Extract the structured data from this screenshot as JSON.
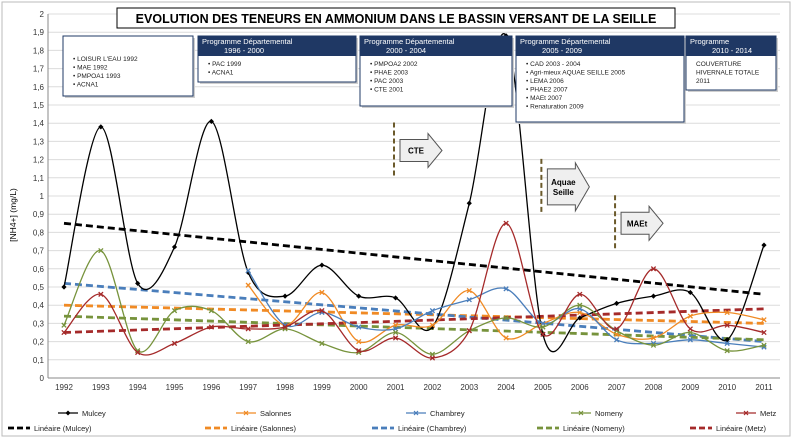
{
  "chart_data": {
    "type": "line",
    "title": "EVOLUTION DES TENEURS EN AMMONIUM DANS LE BASSIN VERSANT DE LA SEILLE",
    "ylabel": "[NH4+] (mg/L)",
    "xlabel": "",
    "ylim": [
      0,
      2
    ],
    "yticks": [
      "0",
      "0,1",
      "0,2",
      "0,3",
      "0,4",
      "0,5",
      "0,6",
      "0,7",
      "0,8",
      "0,9",
      "1",
      "1,1",
      "1,2",
      "1,3",
      "1,4",
      "1,5",
      "1,6",
      "1,7",
      "1,8",
      "1,9",
      "2"
    ],
    "categories": [
      "1992",
      "1993",
      "1994",
      "1995",
      "1996",
      "1997",
      "1998",
      "1999",
      "2000",
      "2001",
      "2002",
      "2003",
      "2004",
      "2005",
      "2006",
      "2007",
      "2008",
      "2009",
      "2010",
      "2011"
    ],
    "grid": true,
    "legend": "bottom",
    "series": [
      {
        "name": "Mulcey",
        "color": "#000000",
        "marker": "diamond",
        "values": [
          0.5,
          1.38,
          0.52,
          0.72,
          1.41,
          0.58,
          0.45,
          0.62,
          0.45,
          0.44,
          0.28,
          0.96,
          1.88,
          0.24,
          0.33,
          0.41,
          0.45,
          0.47,
          0.21,
          0.73
        ]
      },
      {
        "name": "Salonnes",
        "color": "#f08a24",
        "marker": "x",
        "values": [
          null,
          null,
          null,
          null,
          null,
          0.51,
          0.29,
          0.47,
          0.2,
          0.29,
          0.29,
          0.48,
          0.22,
          0.3,
          0.36,
          0.24,
          0.22,
          0.34,
          0.36,
          0.32
        ]
      },
      {
        "name": "Chambrey",
        "color": "#4a7ebb",
        "marker": "x",
        "values": [
          null,
          null,
          null,
          null,
          null,
          0.59,
          0.29,
          0.36,
          0.28,
          0.27,
          0.37,
          0.43,
          0.49,
          0.3,
          0.38,
          0.21,
          0.19,
          0.21,
          0.19,
          0.17
        ]
      },
      {
        "name": "Nomeny",
        "color": "#77933c",
        "marker": "x",
        "values": [
          0.29,
          0.7,
          0.15,
          0.37,
          0.37,
          0.2,
          0.27,
          0.19,
          0.14,
          0.25,
          0.13,
          0.26,
          0.33,
          0.28,
          0.4,
          0.26,
          0.18,
          0.25,
          0.15,
          0.18
        ]
      },
      {
        "name": "Metz",
        "color": "#a52a2a",
        "marker": "x",
        "values": [
          0.25,
          0.46,
          0.14,
          0.19,
          0.28,
          0.27,
          0.28,
          0.37,
          0.15,
          0.22,
          0.11,
          0.26,
          0.85,
          0.24,
          0.46,
          0.27,
          0.6,
          0.27,
          0.29,
          0.25
        ]
      }
    ],
    "trendlines": [
      {
        "name": "Linéaire (Mulcey)",
        "color": "#000000",
        "start": 0.85,
        "end": 0.46,
        "from": "1992",
        "to": "2011"
      },
      {
        "name": "Linéaire (Salonnes)",
        "color": "#f08a24",
        "start": 0.4,
        "end": 0.3,
        "from": "1992",
        "to": "2011"
      },
      {
        "name": "Linéaire (Chambrey)",
        "color": "#4a7ebb",
        "start": 0.52,
        "end": 0.2,
        "from": "1992",
        "to": "2011"
      },
      {
        "name": "Linéaire (Nomeny)",
        "color": "#77933c",
        "start": 0.34,
        "end": 0.21,
        "from": "1992",
        "to": "2011"
      },
      {
        "name": "Linéaire (Metz)",
        "color": "#a52a2a",
        "start": 0.25,
        "end": 0.38,
        "from": "1992",
        "to": "2011"
      }
    ],
    "programmes": [
      {
        "title": "",
        "items": [
          "LOISUR L'EAU 1992",
          "MAE 1992",
          "PMPOA1 1993",
          "ACNA1"
        ]
      },
      {
        "title": "Programme Départemental",
        "subtitle": "1996 - 2000",
        "items": [
          "PAC 1999",
          "ACNA1"
        ]
      },
      {
        "title": "Programme Départemental",
        "subtitle": "2000 - 2004",
        "items": [
          "PMPOA2 2002",
          "PHAE 2003",
          "PAC 2003",
          "CTE 2001"
        ]
      },
      {
        "title": "Programme Départemental",
        "subtitle": "2005 - 2009",
        "items": [
          "CAD 2003 - 2004",
          "Agri-mieux AQUAE SEILLE 2005",
          "LEMA 2006",
          "PHAE2 2007",
          "MAEt 2007",
          "Renaturation 2009"
        ]
      },
      {
        "title": "Programme",
        "subtitle": "2010 - 2014",
        "items": [
          "COUVERTURE",
          "HIVERNALE TOTALE",
          "2011"
        ]
      }
    ],
    "markers": [
      {
        "label": "CTE",
        "year": "2001",
        "y": 1.25
      },
      {
        "label": "Aquae Seille",
        "year": "2005",
        "y": 1.05
      },
      {
        "label": "MAEt",
        "year": "2007",
        "y": 0.85
      }
    ]
  }
}
